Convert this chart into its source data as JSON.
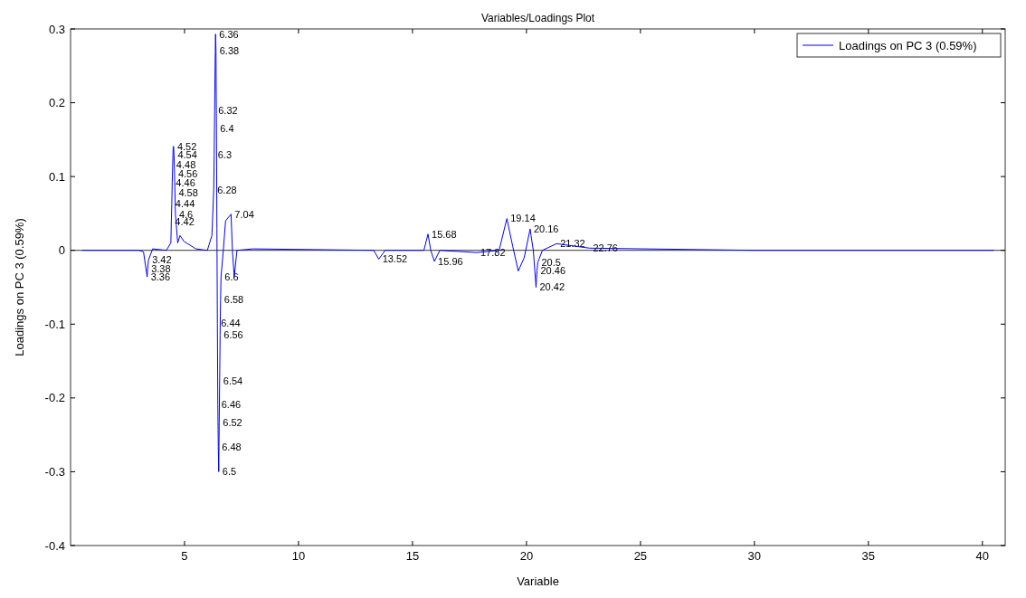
{
  "chart_data": {
    "type": "line",
    "title": "Variables/Loadings Plot",
    "xlabel": "Variable",
    "ylabel": "Loadings on PC 3 (0.59%)",
    "x": [
      0.5,
      3.0,
      3.2,
      3.36,
      3.38,
      3.42,
      3.6,
      4.2,
      4.4,
      4.42,
      4.44,
      4.46,
      4.48,
      4.5,
      4.52,
      4.54,
      4.56,
      4.58,
      4.6,
      4.7,
      4.8,
      4.98,
      5.5,
      6.0,
      6.2,
      6.28,
      6.3,
      6.32,
      6.34,
      6.36,
      6.38,
      6.4,
      6.42,
      6.44,
      6.46,
      6.48,
      6.5,
      6.52,
      6.54,
      6.56,
      6.58,
      6.6,
      6.7,
      6.8,
      7.04,
      7.1,
      7.18,
      7.3,
      8,
      13.3,
      13.52,
      13.8,
      15.5,
      15.68,
      15.8,
      15.96,
      16.2,
      17.82,
      18.8,
      19.14,
      19.4,
      19.64,
      19.9,
      20.16,
      20.2,
      20.3,
      20.42,
      20.46,
      20.5,
      20.7,
      21.32,
      22.76,
      30,
      40.5
    ],
    "series": [
      {
        "name": "Loadings on PC 3 (0.59%)",
        "color": "#0000ff",
        "values": [
          0,
          0,
          -0.002,
          -0.036,
          -0.025,
          -0.013,
          0.002,
          0,
          0.01,
          0.039,
          0.063,
          0.092,
          0.116,
          0.14,
          0.141,
          0.129,
          0.104,
          0.078,
          0.049,
          0.01,
          0.02,
          0.012,
          0.002,
          0,
          0.02,
          0.082,
          0.129,
          0.189,
          0.25,
          0.293,
          0.27,
          0.165,
          0.03,
          -0.099,
          -0.209,
          -0.266,
          -0.3,
          -0.233,
          -0.177,
          -0.115,
          -0.067,
          -0.036,
          0,
          0.04,
          0.049,
          0,
          -0.036,
          0,
          0.002,
          0,
          -0.012,
          0,
          0,
          0.022,
          0,
          -0.015,
          0,
          -0.003,
          0,
          0.043,
          0.005,
          -0.028,
          -0.01,
          0.029,
          0.02,
          0,
          -0.05,
          -0.028,
          -0.016,
          0,
          0.009,
          0.003,
          0,
          0
        ]
      }
    ],
    "xlim": [
      0,
      41
    ],
    "ylim": [
      -0.4,
      0.3
    ],
    "xticks": [
      5,
      10,
      15,
      20,
      25,
      30,
      35,
      40
    ],
    "yticks": [
      -0.4,
      -0.3,
      -0.2,
      -0.1,
      0,
      0.1,
      0.2,
      0.3
    ],
    "ref_lines": [
      {
        "axis": "y",
        "value": 0,
        "color": "#000000"
      }
    ],
    "legend": "top right",
    "grid": false,
    "marker": "none",
    "line_style": "solid",
    "annotations": [
      {
        "text": "3.36",
        "x": 3.36,
        "y": -0.036
      },
      {
        "text": "3.38",
        "x": 3.38,
        "y": -0.025
      },
      {
        "text": "3.42",
        "x": 3.42,
        "y": -0.013
      },
      {
        "text": "4.42",
        "x": 4.42,
        "y": 0.039
      },
      {
        "text": "4.44",
        "x": 4.44,
        "y": 0.063
      },
      {
        "text": "4.46",
        "x": 4.46,
        "y": 0.092
      },
      {
        "text": "4.48",
        "x": 4.48,
        "y": 0.116
      },
      {
        "text": "4.52",
        "x": 4.52,
        "y": 0.141
      },
      {
        "text": "4.54",
        "x": 4.54,
        "y": 0.129
      },
      {
        "text": "4.56",
        "x": 4.56,
        "y": 0.104
      },
      {
        "text": "4.58",
        "x": 4.58,
        "y": 0.078
      },
      {
        "text": "4.6",
        "x": 4.6,
        "y": 0.049
      },
      {
        "text": "6.28",
        "x": 6.28,
        "y": 0.082
      },
      {
        "text": "6.3",
        "x": 6.3,
        "y": 0.129
      },
      {
        "text": "6.32",
        "x": 6.32,
        "y": 0.189
      },
      {
        "text": "6.36",
        "x": 6.36,
        "y": 0.293
      },
      {
        "text": "6.38",
        "x": 6.38,
        "y": 0.27
      },
      {
        "text": "6.4",
        "x": 6.4,
        "y": 0.165
      },
      {
        "text": "6.44",
        "x": 6.44,
        "y": -0.099
      },
      {
        "text": "6.46",
        "x": 6.46,
        "y": -0.209
      },
      {
        "text": "6.48",
        "x": 6.48,
        "y": -0.266
      },
      {
        "text": "6.5",
        "x": 6.5,
        "y": -0.3
      },
      {
        "text": "6.52",
        "x": 6.52,
        "y": -0.233
      },
      {
        "text": "6.54",
        "x": 6.54,
        "y": -0.177
      },
      {
        "text": "6.56",
        "x": 6.56,
        "y": -0.115
      },
      {
        "text": "6.58",
        "x": 6.58,
        "y": -0.067
      },
      {
        "text": "6.6",
        "x": 6.6,
        "y": -0.036
      },
      {
        "text": "7.04",
        "x": 7.04,
        "y": 0.049
      },
      {
        "text": "13.52",
        "x": 13.52,
        "y": -0.012
      },
      {
        "text": "15.68",
        "x": 15.68,
        "y": 0.022
      },
      {
        "text": "15.96",
        "x": 15.96,
        "y": -0.015
      },
      {
        "text": "17.82",
        "x": 17.82,
        "y": -0.003
      },
      {
        "text": "19.14",
        "x": 19.14,
        "y": 0.043
      },
      {
        "text": "20.16",
        "x": 20.16,
        "y": 0.029
      },
      {
        "text": "20.42",
        "x": 20.42,
        "y": -0.05
      },
      {
        "text": "20.46",
        "x": 20.46,
        "y": -0.028
      },
      {
        "text": "20.5",
        "x": 20.5,
        "y": -0.016
      },
      {
        "text": "21.32",
        "x": 21.32,
        "y": 0.009
      },
      {
        "text": "22.76",
        "x": 22.76,
        "y": 0.003
      }
    ]
  }
}
